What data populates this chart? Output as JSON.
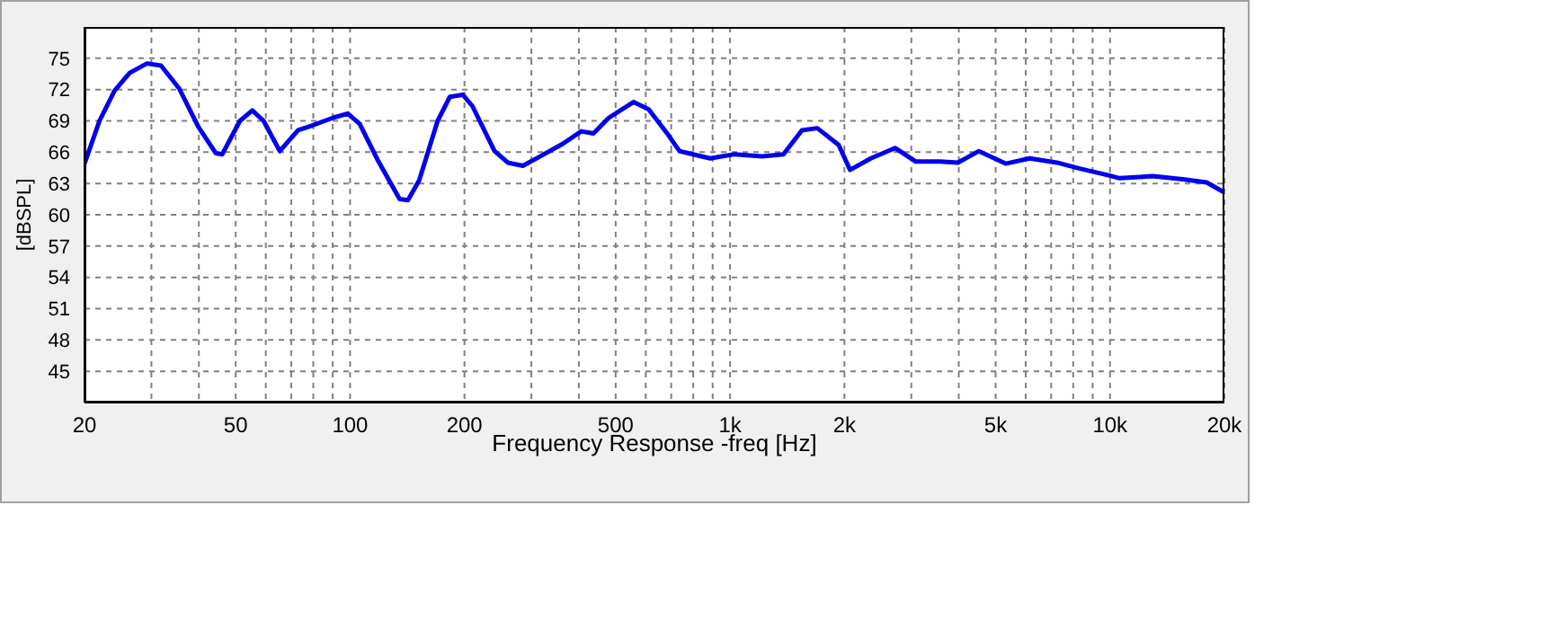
{
  "chart_data": {
    "type": "line",
    "xlabel": "Frequency Response -freq [Hz]",
    "ylabel": "[dBSPL]",
    "log": "x",
    "grid": true,
    "marker": "none",
    "line_style": "solid",
    "xlim": [
      20,
      20000
    ],
    "xticks": [
      20,
      {
        "value": 30,
        "label": null
      },
      {
        "value": 40,
        "label": null
      },
      50,
      {
        "value": 60,
        "label": null
      },
      {
        "value": 70,
        "label": null
      },
      {
        "value": 80,
        "label": null
      },
      {
        "value": 90,
        "label": null
      },
      100,
      200,
      {
        "value": 300,
        "label": null
      },
      {
        "value": 400,
        "label": null
      },
      500,
      {
        "value": 600,
        "label": null
      },
      {
        "value": 700,
        "label": null
      },
      {
        "value": 800,
        "label": null
      },
      {
        "value": 900,
        "label": null
      },
      {
        "value": 1000,
        "label": "1k"
      },
      {
        "value": 2000,
        "label": "2k"
      },
      {
        "value": 3000,
        "label": null
      },
      {
        "value": 4000,
        "label": null
      },
      {
        "value": 5000,
        "label": "5k"
      },
      {
        "value": 6000,
        "label": null
      },
      {
        "value": 7000,
        "label": null
      },
      {
        "value": 8000,
        "label": null
      },
      {
        "value": 9000,
        "label": null
      },
      {
        "value": 10000,
        "label": "10k"
      },
      {
        "value": 20000,
        "label": "20k"
      }
    ],
    "ylim": [
      42,
      78
    ],
    "yticks": [
      45,
      48,
      51,
      54,
      57,
      60,
      63,
      66,
      69,
      72,
      75
    ],
    "series": [
      {
        "color": "#0000ee",
        "x": [
          20,
          21.9,
          24,
          26.3,
          29.2,
          31.8,
          35.5,
          39.9,
          44.3,
          46.1,
          51.3,
          55.3,
          59.2,
          65.3,
          73,
          78.6,
          90.3,
          98.6,
          106,
          118,
          135,
          142,
          152,
          170,
          183,
          198,
          210,
          240,
          260,
          285,
          313,
          363,
          406,
          437,
          480,
          557,
          611,
          683,
          736,
          886,
          1029,
          1214,
          1382,
          1546,
          1697,
          1931,
          2069,
          2347,
          2718,
          3083,
          3566,
          3979,
          4518,
          5313,
          6150,
          7243,
          8375,
          9863,
          10600,
          12950,
          15530,
          17960,
          19880
        ],
        "values": [
          64.9,
          69.0,
          71.9,
          73.6,
          74.5,
          74.3,
          72.1,
          68.4,
          65.9,
          65.8,
          69.0,
          70.0,
          69.0,
          66.1,
          68.1,
          68.5,
          69.3,
          69.7,
          68.7,
          65.3,
          61.5,
          61.4,
          63.3,
          69.0,
          71.3,
          71.5,
          70.4,
          66.1,
          65.0,
          64.7,
          65.5,
          66.8,
          68.0,
          67.8,
          69.3,
          70.8,
          70.1,
          67.8,
          66.1,
          65.4,
          65.8,
          65.6,
          65.8,
          68.1,
          68.3,
          66.7,
          64.3,
          65.4,
          66.4,
          65.1,
          65.1,
          65.0,
          66.1,
          64.9,
          65.4,
          65.0,
          64.4,
          63.8,
          63.5,
          63.7,
          63.4,
          63.1,
          62.2
        ]
      }
    ]
  }
}
